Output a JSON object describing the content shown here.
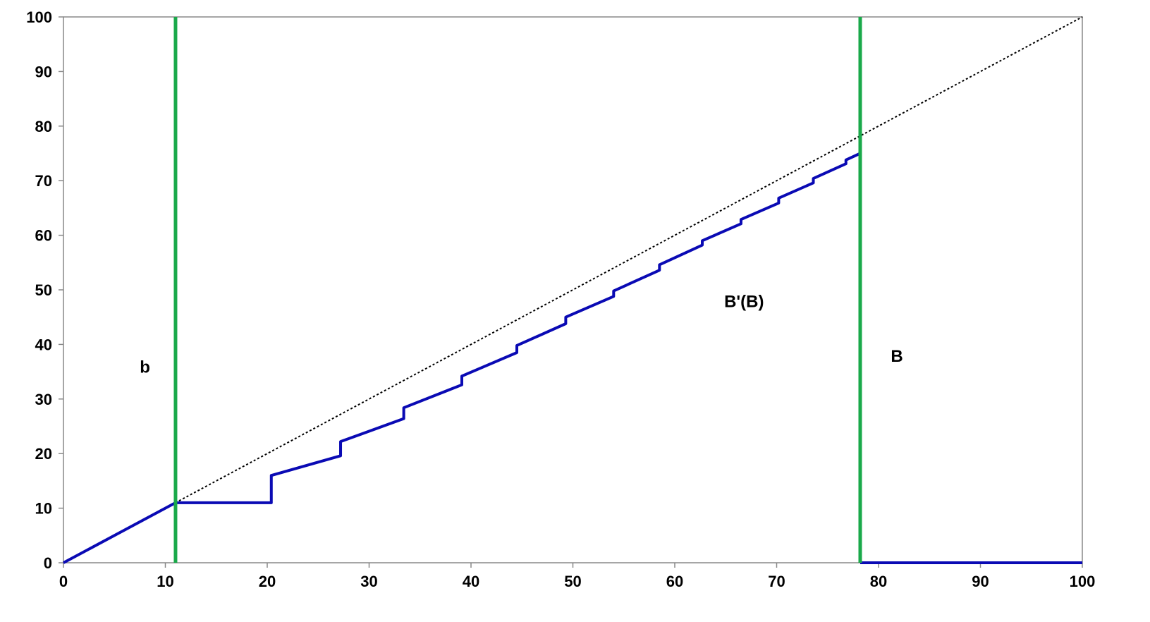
{
  "chart_data": {
    "type": "line",
    "title": "",
    "xlabel": "",
    "ylabel": "",
    "xlim": [
      0,
      100
    ],
    "ylim": [
      0,
      100
    ],
    "x_ticks": [
      0,
      10,
      20,
      30,
      40,
      50,
      60,
      70,
      80,
      90,
      100
    ],
    "y_ticks": [
      0,
      10,
      20,
      30,
      40,
      50,
      60,
      70,
      80,
      90,
      100
    ],
    "grid": false,
    "colors": {
      "diagonal": "#000000",
      "step_curve": "#0a0ab4",
      "vertical_lines": "#1aa94a"
    },
    "series": [
      {
        "style": "dotted",
        "color": "#000000",
        "points": [
          [
            0,
            0
          ],
          [
            100,
            100
          ]
        ]
      },
      {
        "style": "solid",
        "color": "#0a0ab4",
        "points": [
          [
            0,
            0
          ],
          [
            11,
            11
          ],
          [
            20.4,
            11
          ],
          [
            20.4,
            16
          ],
          [
            27.2,
            19.6
          ],
          [
            27.2,
            22.2
          ],
          [
            33.4,
            26.4
          ],
          [
            33.4,
            28.4
          ],
          [
            39.1,
            32.6
          ],
          [
            39.1,
            34.2
          ],
          [
            44.5,
            38.5
          ],
          [
            44.5,
            39.8
          ],
          [
            49.3,
            43.8
          ],
          [
            49.3,
            45
          ],
          [
            54,
            48.8
          ],
          [
            54,
            49.8
          ],
          [
            58.5,
            53.6
          ],
          [
            58.5,
            54.6
          ],
          [
            62.7,
            58.2
          ],
          [
            62.7,
            59
          ],
          [
            66.5,
            62.1
          ],
          [
            66.5,
            62.9
          ],
          [
            70.2,
            65.9
          ],
          [
            70.2,
            66.8
          ],
          [
            73.6,
            69.6
          ],
          [
            73.6,
            70.4
          ],
          [
            76.8,
            73.1
          ],
          [
            76.8,
            73.8
          ],
          [
            78.2,
            75
          ]
        ]
      },
      {
        "style": "solid",
        "color": "#0a0ab4",
        "points": [
          [
            78.2,
            0
          ],
          [
            100,
            0
          ]
        ]
      }
    ],
    "vertical_lines": [
      {
        "x": 11,
        "color": "#1aa94a"
      },
      {
        "x": 78.2,
        "color": "#1aa94a"
      }
    ],
    "annotations": [
      {
        "text": "b",
        "x": 8,
        "y": 36
      },
      {
        "text": "B'(B)",
        "x": 66.8,
        "y": 48
      },
      {
        "text": "B",
        "x": 81.8,
        "y": 38
      }
    ]
  }
}
